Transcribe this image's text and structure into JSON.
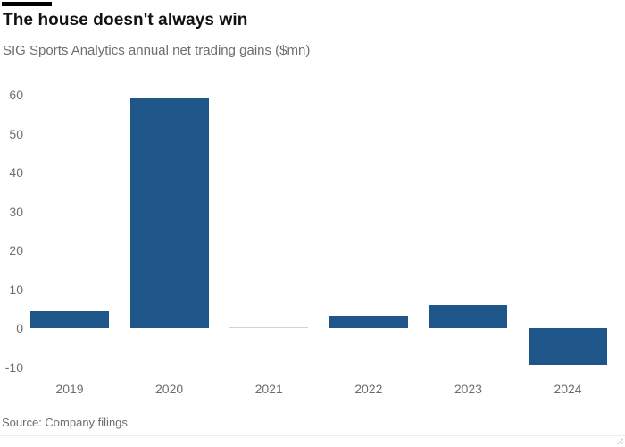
{
  "header": {
    "title": "The house doesn't always win",
    "subtitle": "SIG Sports Analytics annual net trading gains ($mn)"
  },
  "footer": {
    "source": "Source: Company filings"
  },
  "colors": {
    "bar": "#1f5689",
    "title_text": "#121212",
    "muted_text": "#6e6e6e",
    "top_rule": "#000000"
  },
  "chart_data": {
    "type": "bar",
    "title": "The house doesn't always win",
    "subtitle": "SIG Sports Analytics annual net trading gains ($mn)",
    "categories": [
      "2019",
      "2020",
      "2021",
      "2022",
      "2023",
      "2024"
    ],
    "values": [
      4.4,
      59,
      0.1,
      3.2,
      6,
      -9.5
    ],
    "xlabel": "",
    "ylabel": "",
    "ylim": [
      -13,
      63
    ],
    "yticks": [
      -10,
      0,
      10,
      20,
      30,
      40,
      50,
      60
    ],
    "grid": false,
    "legend": false,
    "bar_color": "#1f5689",
    "source": "Source: Company filings"
  }
}
